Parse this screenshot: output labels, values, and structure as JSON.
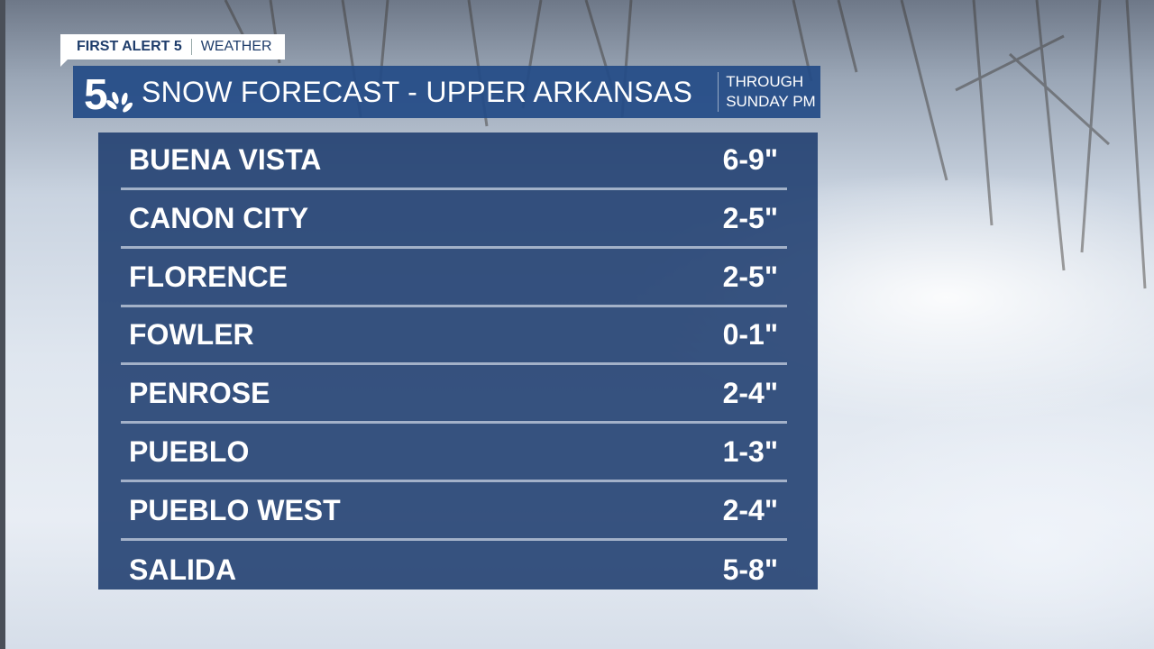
{
  "brand_tag": {
    "primary": "FIRST ALERT 5",
    "secondary": "WEATHER"
  },
  "header": {
    "logo": "5 NBC peacock logo",
    "title": "SNOW FORECAST - UPPER ARKANSAS",
    "subtitle_line1": "THROUGH",
    "subtitle_line2": "SUNDAY PM"
  },
  "colors": {
    "header": "#234b87",
    "panel": "#1e3c6e",
    "text": "#ffffff"
  },
  "forecast": [
    {
      "city": "BUENA VISTA",
      "amount": "6-9\""
    },
    {
      "city": "CANON CITY",
      "amount": "2-5\""
    },
    {
      "city": "FLORENCE",
      "amount": "2-5\""
    },
    {
      "city": "FOWLER",
      "amount": "0-1\""
    },
    {
      "city": "PENROSE",
      "amount": "2-4\""
    },
    {
      "city": "PUEBLO",
      "amount": "1-3\""
    },
    {
      "city": "PUEBLO WEST",
      "amount": "2-4\""
    },
    {
      "city": "SALIDA",
      "amount": "5-8\""
    }
  ]
}
